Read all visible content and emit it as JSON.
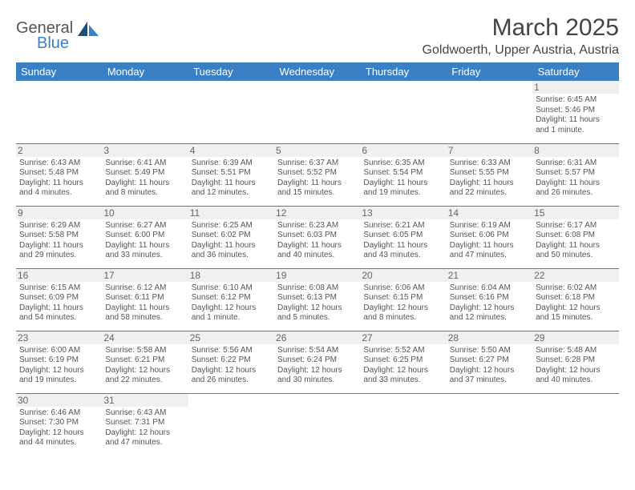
{
  "brand": {
    "part1": "General",
    "part2": "Blue"
  },
  "title": "March 2025",
  "location": "Goldwoerth, Upper Austria, Austria",
  "colors": {
    "accent": "#3b7fc4",
    "header_bg": "#3b7fc4",
    "text": "#555",
    "band": "#f0f0f0"
  },
  "weekdays": [
    "Sunday",
    "Monday",
    "Tuesday",
    "Wednesday",
    "Thursday",
    "Friday",
    "Saturday"
  ],
  "weeks": [
    [
      null,
      null,
      null,
      null,
      null,
      null,
      {
        "n": "1",
        "sr": "Sunrise: 6:45 AM",
        "ss": "Sunset: 5:46 PM",
        "d1": "Daylight: 11 hours",
        "d2": "and 1 minute."
      }
    ],
    [
      {
        "n": "2",
        "sr": "Sunrise: 6:43 AM",
        "ss": "Sunset: 5:48 PM",
        "d1": "Daylight: 11 hours",
        "d2": "and 4 minutes."
      },
      {
        "n": "3",
        "sr": "Sunrise: 6:41 AM",
        "ss": "Sunset: 5:49 PM",
        "d1": "Daylight: 11 hours",
        "d2": "and 8 minutes."
      },
      {
        "n": "4",
        "sr": "Sunrise: 6:39 AM",
        "ss": "Sunset: 5:51 PM",
        "d1": "Daylight: 11 hours",
        "d2": "and 12 minutes."
      },
      {
        "n": "5",
        "sr": "Sunrise: 6:37 AM",
        "ss": "Sunset: 5:52 PM",
        "d1": "Daylight: 11 hours",
        "d2": "and 15 minutes."
      },
      {
        "n": "6",
        "sr": "Sunrise: 6:35 AM",
        "ss": "Sunset: 5:54 PM",
        "d1": "Daylight: 11 hours",
        "d2": "and 19 minutes."
      },
      {
        "n": "7",
        "sr": "Sunrise: 6:33 AM",
        "ss": "Sunset: 5:55 PM",
        "d1": "Daylight: 11 hours",
        "d2": "and 22 minutes."
      },
      {
        "n": "8",
        "sr": "Sunrise: 6:31 AM",
        "ss": "Sunset: 5:57 PM",
        "d1": "Daylight: 11 hours",
        "d2": "and 26 minutes."
      }
    ],
    [
      {
        "n": "9",
        "sr": "Sunrise: 6:29 AM",
        "ss": "Sunset: 5:58 PM",
        "d1": "Daylight: 11 hours",
        "d2": "and 29 minutes."
      },
      {
        "n": "10",
        "sr": "Sunrise: 6:27 AM",
        "ss": "Sunset: 6:00 PM",
        "d1": "Daylight: 11 hours",
        "d2": "and 33 minutes."
      },
      {
        "n": "11",
        "sr": "Sunrise: 6:25 AM",
        "ss": "Sunset: 6:02 PM",
        "d1": "Daylight: 11 hours",
        "d2": "and 36 minutes."
      },
      {
        "n": "12",
        "sr": "Sunrise: 6:23 AM",
        "ss": "Sunset: 6:03 PM",
        "d1": "Daylight: 11 hours",
        "d2": "and 40 minutes."
      },
      {
        "n": "13",
        "sr": "Sunrise: 6:21 AM",
        "ss": "Sunset: 6:05 PM",
        "d1": "Daylight: 11 hours",
        "d2": "and 43 minutes."
      },
      {
        "n": "14",
        "sr": "Sunrise: 6:19 AM",
        "ss": "Sunset: 6:06 PM",
        "d1": "Daylight: 11 hours",
        "d2": "and 47 minutes."
      },
      {
        "n": "15",
        "sr": "Sunrise: 6:17 AM",
        "ss": "Sunset: 6:08 PM",
        "d1": "Daylight: 11 hours",
        "d2": "and 50 minutes."
      }
    ],
    [
      {
        "n": "16",
        "sr": "Sunrise: 6:15 AM",
        "ss": "Sunset: 6:09 PM",
        "d1": "Daylight: 11 hours",
        "d2": "and 54 minutes."
      },
      {
        "n": "17",
        "sr": "Sunrise: 6:12 AM",
        "ss": "Sunset: 6:11 PM",
        "d1": "Daylight: 11 hours",
        "d2": "and 58 minutes."
      },
      {
        "n": "18",
        "sr": "Sunrise: 6:10 AM",
        "ss": "Sunset: 6:12 PM",
        "d1": "Daylight: 12 hours",
        "d2": "and 1 minute."
      },
      {
        "n": "19",
        "sr": "Sunrise: 6:08 AM",
        "ss": "Sunset: 6:13 PM",
        "d1": "Daylight: 12 hours",
        "d2": "and 5 minutes."
      },
      {
        "n": "20",
        "sr": "Sunrise: 6:06 AM",
        "ss": "Sunset: 6:15 PM",
        "d1": "Daylight: 12 hours",
        "d2": "and 8 minutes."
      },
      {
        "n": "21",
        "sr": "Sunrise: 6:04 AM",
        "ss": "Sunset: 6:16 PM",
        "d1": "Daylight: 12 hours",
        "d2": "and 12 minutes."
      },
      {
        "n": "22",
        "sr": "Sunrise: 6:02 AM",
        "ss": "Sunset: 6:18 PM",
        "d1": "Daylight: 12 hours",
        "d2": "and 15 minutes."
      }
    ],
    [
      {
        "n": "23",
        "sr": "Sunrise: 6:00 AM",
        "ss": "Sunset: 6:19 PM",
        "d1": "Daylight: 12 hours",
        "d2": "and 19 minutes."
      },
      {
        "n": "24",
        "sr": "Sunrise: 5:58 AM",
        "ss": "Sunset: 6:21 PM",
        "d1": "Daylight: 12 hours",
        "d2": "and 22 minutes."
      },
      {
        "n": "25",
        "sr": "Sunrise: 5:56 AM",
        "ss": "Sunset: 6:22 PM",
        "d1": "Daylight: 12 hours",
        "d2": "and 26 minutes."
      },
      {
        "n": "26",
        "sr": "Sunrise: 5:54 AM",
        "ss": "Sunset: 6:24 PM",
        "d1": "Daylight: 12 hours",
        "d2": "and 30 minutes."
      },
      {
        "n": "27",
        "sr": "Sunrise: 5:52 AM",
        "ss": "Sunset: 6:25 PM",
        "d1": "Daylight: 12 hours",
        "d2": "and 33 minutes."
      },
      {
        "n": "28",
        "sr": "Sunrise: 5:50 AM",
        "ss": "Sunset: 6:27 PM",
        "d1": "Daylight: 12 hours",
        "d2": "and 37 minutes."
      },
      {
        "n": "29",
        "sr": "Sunrise: 5:48 AM",
        "ss": "Sunset: 6:28 PM",
        "d1": "Daylight: 12 hours",
        "d2": "and 40 minutes."
      }
    ],
    [
      {
        "n": "30",
        "sr": "Sunrise: 6:46 AM",
        "ss": "Sunset: 7:30 PM",
        "d1": "Daylight: 12 hours",
        "d2": "and 44 minutes."
      },
      {
        "n": "31",
        "sr": "Sunrise: 6:43 AM",
        "ss": "Sunset: 7:31 PM",
        "d1": "Daylight: 12 hours",
        "d2": "and 47 minutes."
      },
      null,
      null,
      null,
      null,
      null
    ]
  ]
}
